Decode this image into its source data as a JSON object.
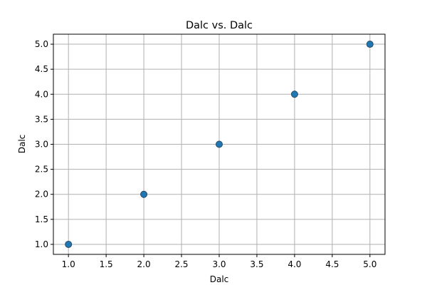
{
  "chart_data": {
    "type": "scatter",
    "title": "Dalc vs. Dalc",
    "xlabel": "Dalc",
    "ylabel": "Dalc",
    "x": [
      1,
      2,
      3,
      4,
      5
    ],
    "y": [
      1,
      2,
      3,
      4,
      5
    ],
    "xlim": [
      0.8,
      5.2
    ],
    "ylim": [
      0.8,
      5.2
    ],
    "xticks": [
      "1.0",
      "1.5",
      "2.0",
      "2.5",
      "3.0",
      "3.5",
      "4.0",
      "4.5",
      "5.0"
    ],
    "yticks": [
      "1.0",
      "1.5",
      "2.0",
      "2.5",
      "3.0",
      "3.5",
      "4.0",
      "4.5",
      "5.0"
    ],
    "grid": true,
    "marker_color": "#1f77b4",
    "marker_edge_color": "#2b4a66",
    "grid_color": "#b0b0b0"
  }
}
